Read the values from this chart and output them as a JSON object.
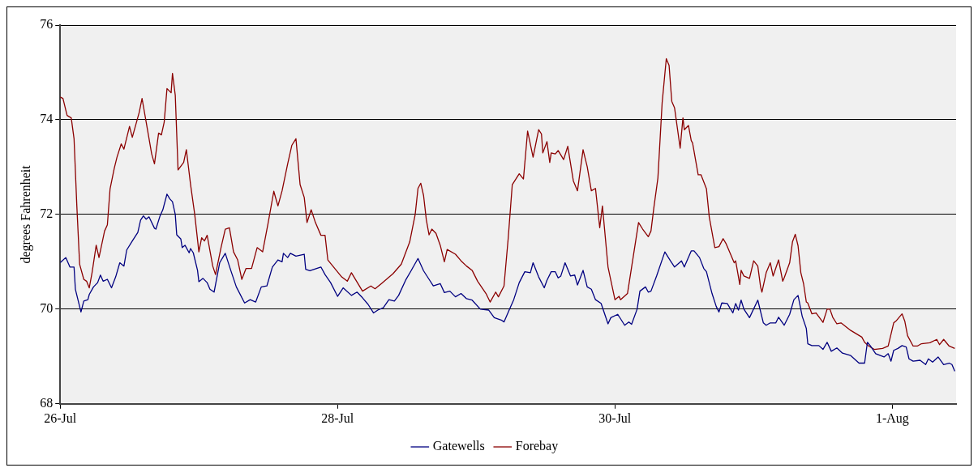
{
  "chart_data": {
    "type": "line",
    "ylabel": "degrees Fahrenheit",
    "xlim": [
      "--07-26T00:00",
      "--08-01T11:02"
    ],
    "xticks": [
      {
        "value": "--07-26",
        "label": "26-Jul"
      },
      {
        "value": "--07-28",
        "label": "28-Jul"
      },
      {
        "value": "--07-30",
        "label": "30-Jul"
      },
      {
        "value": "--08-01",
        "label": "1-Aug"
      }
    ],
    "ylim": [
      68,
      76
    ],
    "yticks": [
      68,
      70,
      72,
      74,
      76
    ],
    "grid": "y",
    "legend": "bottom",
    "marker": "none",
    "line_style": "solid",
    "series": [
      {
        "name": "Gatewells",
        "color": "#000080",
        "x": [
          "--07-26T00:00",
          "--07-26T00:58",
          "--07-26T01:41",
          "--07-26T02:24",
          "--07-26T02:38",
          "--07-26T03:36",
          "--07-26T04:05",
          "--07-26T04:48",
          "--07-26T05:02",
          "--07-26T05:46",
          "--07-26T06:29",
          "--07-26T06:58",
          "--07-26T07:26",
          "--07-26T08:10",
          "--07-26T08:53",
          "--07-26T09:36",
          "--07-26T10:19",
          "--07-26T11:02",
          "--07-26T11:31",
          "--07-26T12:29",
          "--07-26T13:26",
          "--07-26T13:55",
          "--07-26T14:24",
          "--07-26T14:53",
          "--07-26T15:22",
          "--07-26T16:19",
          "--07-26T16:34",
          "--07-26T17:17",
          "--07-26T17:46",
          "--07-26T18:29",
          "--07-26T18:58",
          "--07-26T19:26",
          "--07-26T19:55",
          "--07-26T20:10",
          "--07-26T20:53",
          "--07-26T21:07",
          "--07-26T21:36",
          "--07-26T22:19",
          "--07-26T22:34",
          "--07-26T23:02",
          "--07-26T23:46",
          "--07-27T00:00",
          "--07-27T00:43",
          "--07-27T01:26",
          "--07-27T01:55",
          "--07-27T02:38",
          "--07-27T03:36",
          "--07-27T04:34",
          "--07-27T05:31",
          "--07-27T06:29",
          "--07-27T07:55",
          "--07-27T08:53",
          "--07-27T09:50",
          "--07-27T10:48",
          "--07-27T11:46",
          "--07-27T12:43",
          "--07-27T13:41",
          "--07-27T14:24",
          "--07-27T14:38",
          "--07-27T15:22",
          "--07-27T15:50",
          "--07-27T16:48",
          "--07-27T18:14",
          "--07-27T18:29",
          "--07-27T19:12",
          "--07-27T21:07",
          "--07-27T21:50",
          "--07-27T22:48",
          "--07-28T00:00",
          "--07-28T00:58",
          "--07-28T02:24",
          "--07-28T03:22",
          "--07-28T04:19",
          "--07-28T05:17",
          "--07-28T06:14",
          "--07-28T06:58",
          "--07-28T07:55",
          "--07-28T08:53",
          "--07-28T09:50",
          "--07-28T10:34",
          "--07-28T11:46",
          "--07-28T12:43",
          "--07-28T13:55",
          "--07-28T14:53",
          "--07-28T15:50",
          "--07-28T16:34",
          "--07-28T17:46",
          "--07-28T18:29",
          "--07-28T19:26",
          "--07-28T20:24",
          "--07-28T21:22",
          "--07-28T22:19",
          "--07-28T23:17",
          "--07-29T00:43",
          "--07-29T02:10",
          "--07-29T03:07",
          "--07-29T04:19",
          "--07-29T04:48",
          "--07-29T05:46",
          "--07-29T06:29",
          "--07-29T07:26",
          "--07-29T08:24",
          "--07-29T09:22",
          "--07-29T09:50",
          "--07-29T10:48",
          "--07-29T11:46",
          "--07-29T12:14",
          "--07-29T12:58",
          "--07-29T13:41",
          "--07-29T14:10",
          "--07-29T14:38",
          "--07-29T15:22",
          "--07-29T16:19",
          "--07-29T17:02",
          "--07-29T17:31",
          "--07-29T18:29",
          "--07-29T19:12",
          "--07-29T19:55",
          "--07-29T20:38",
          "--07-29T21:36",
          "--07-29T22:48",
          "--07-29T23:17",
          "--07-30T00:29",
          "--07-30T01:41",
          "--07-30T02:24",
          "--07-30T02:53",
          "--07-30T03:50",
          "--07-30T04:19",
          "--07-30T05:17",
          "--07-30T05:46",
          "--07-30T06:14",
          "--07-30T07:12",
          "--07-30T08:38",
          "--07-30T09:36",
          "--07-30T10:19",
          "--07-30T11:31",
          "--07-30T12:00",
          "--07-30T13:12",
          "--07-30T13:41",
          "--07-30T14:38",
          "--07-30T15:22",
          "--07-30T15:50",
          "--07-30T16:48",
          "--07-30T17:31",
          "--07-30T18:00",
          "--07-30T18:29",
          "--07-30T19:26",
          "--07-30T20:24",
          "--07-30T20:53",
          "--07-30T21:22",
          "--07-30T21:50",
          "--07-30T22:19",
          "--07-30T23:17",
          "--07-31T00:43",
          "--07-31T01:41",
          "--07-31T02:10",
          "--07-31T02:53",
          "--07-31T03:50",
          "--07-31T04:19",
          "--07-31T05:17",
          "--07-31T06:14",
          "--07-31T06:58",
          "--07-31T07:41",
          "--07-31T08:24",
          "--07-31T09:07",
          "--07-31T09:22",
          "--07-31T10:05",
          "--07-31T11:17",
          "--07-31T12:00",
          "--07-31T12:43",
          "--07-31T13:26",
          "--07-31T14:24",
          "--07-31T15:22",
          "--07-31T16:48",
          "--07-31T18:14",
          "--07-31T19:12",
          "--07-31T19:41",
          "--07-31T20:10",
          "--07-31T21:07",
          "--07-31T22:34",
          "--07-31T23:17",
          "--07-31T23:46",
          "--08-01T00:14",
          "--08-01T00:58",
          "--08-01T01:41",
          "--08-01T02:24",
          "--08-01T02:53",
          "--08-01T03:36",
          "--08-01T04:48",
          "--08-01T05:46",
          "--08-01T06:14",
          "--08-01T06:58",
          "--08-01T07:55",
          "--08-01T08:53",
          "--08-01T09:50",
          "--08-01T10:19",
          "--08-01T10:48"
        ],
        "values": [
          70.98,
          71.09,
          70.89,
          70.89,
          70.42,
          69.94,
          70.17,
          70.2,
          70.31,
          70.47,
          70.56,
          70.72,
          70.59,
          70.63,
          70.45,
          70.68,
          70.98,
          70.91,
          71.25,
          71.44,
          71.62,
          71.88,
          71.97,
          71.9,
          71.95,
          71.71,
          71.69,
          71.97,
          72.1,
          72.43,
          72.33,
          72.27,
          72.0,
          71.57,
          71.48,
          71.3,
          71.35,
          71.19,
          71.28,
          71.19,
          70.82,
          70.58,
          70.65,
          70.56,
          70.42,
          70.36,
          70.98,
          71.18,
          70.82,
          70.47,
          70.13,
          70.2,
          70.15,
          70.47,
          70.49,
          70.89,
          71.04,
          71.0,
          71.18,
          71.09,
          71.18,
          71.12,
          71.16,
          70.84,
          70.81,
          70.89,
          70.73,
          70.56,
          70.27,
          70.45,
          70.29,
          70.36,
          70.24,
          70.1,
          69.92,
          69.98,
          70.03,
          70.2,
          70.17,
          70.29,
          70.61,
          70.81,
          71.07,
          70.81,
          70.63,
          70.49,
          70.54,
          70.35,
          70.38,
          70.26,
          70.33,
          70.22,
          70.19,
          70.0,
          69.98,
          69.82,
          69.77,
          69.73,
          70.0,
          70.2,
          70.56,
          70.79,
          70.77,
          70.98,
          70.68,
          70.45,
          70.61,
          70.79,
          70.79,
          70.66,
          70.7,
          70.98,
          70.7,
          70.72,
          70.51,
          70.82,
          70.47,
          70.42,
          70.2,
          70.12,
          69.69,
          69.82,
          69.89,
          69.66,
          69.73,
          69.68,
          70.0,
          70.38,
          70.47,
          70.36,
          70.38,
          70.7,
          71.21,
          71.02,
          70.89,
          71.02,
          70.89,
          71.23,
          71.23,
          71.09,
          70.86,
          70.79,
          70.33,
          70.06,
          69.94,
          70.13,
          70.12,
          69.92,
          70.12,
          69.98,
          70.19,
          70.0,
          69.82,
          70.19,
          69.71,
          69.66,
          69.71,
          69.71,
          69.83,
          69.66,
          69.89,
          70.2,
          70.29,
          69.85,
          69.59,
          69.27,
          69.23,
          69.23,
          69.15,
          69.3,
          69.11,
          69.18,
          69.07,
          69.02,
          68.86,
          68.86,
          69.3,
          69.23,
          69.06,
          68.99,
          69.06,
          68.9,
          69.13,
          69.17,
          69.23,
          69.2,
          68.95,
          68.9,
          68.92,
          68.83,
          68.95,
          68.88,
          68.99,
          68.83,
          68.86,
          68.83,
          68.69
        ]
      },
      {
        "name": "Forebay",
        "color": "#8b0000",
        "x": [
          "--07-26T00:00",
          "--07-26T00:29",
          "--07-26T01:12",
          "--07-26T01:55",
          "--07-26T02:24",
          "--07-26T02:53",
          "--07-26T03:22",
          "--07-26T04:05",
          "--07-26T04:34",
          "--07-26T05:02",
          "--07-26T05:31",
          "--07-26T06:14",
          "--07-26T06:43",
          "--07-26T07:41",
          "--07-26T08:10",
          "--07-26T08:38",
          "--07-26T09:22",
          "--07-26T09:50",
          "--07-26T10:34",
          "--07-26T11:02",
          "--07-26T12:00",
          "--07-26T12:29",
          "--07-26T13:41",
          "--07-26T14:10",
          "--07-26T14:53",
          "--07-26T15:50",
          "--07-26T16:19",
          "--07-26T17:02",
          "--07-26T17:31",
          "--07-26T18:00",
          "--07-26T18:29",
          "--07-26T19:12",
          "--07-26T19:26",
          "--07-26T19:55",
          "--07-26T20:24",
          "--07-26T21:22",
          "--07-26T21:50",
          "--07-26T22:34",
          "--07-26T23:17",
          "--07-27T00:00",
          "--07-27T00:29",
          "--07-27T00:58",
          "--07-27T01:26",
          "--07-27T02:24",
          "--07-27T02:53",
          "--07-27T03:50",
          "--07-27T04:34",
          "--07-27T05:17",
          "--07-27T06:00",
          "--07-27T06:43",
          "--07-27T07:26",
          "--07-27T08:10",
          "--07-27T09:07",
          "--07-27T10:05",
          "--07-27T11:02",
          "--07-27T12:00",
          "--07-27T12:58",
          "--07-27T13:41",
          "--07-27T14:24",
          "--07-27T15:22",
          "--07-27T16:05",
          "--07-27T16:48",
          "--07-27T17:31",
          "--07-27T18:14",
          "--07-27T18:43",
          "--07-27T19:26",
          "--07-27T20:10",
          "--07-27T21:07",
          "--07-27T21:50",
          "--07-27T22:19",
          "--07-27T23:31",
          "--07-28T00:43",
          "--07-28T01:41",
          "--07-28T02:24",
          "--07-28T04:19",
          "--07-28T05:46",
          "--07-28T06:29",
          "--07-28T07:41",
          "--07-28T09:36",
          "--07-28T11:02",
          "--07-28T12:29",
          "--07-28T13:26",
          "--07-28T13:55",
          "--07-28T14:24",
          "--07-28T14:53",
          "--07-28T15:22",
          "--07-28T15:50",
          "--07-28T16:19",
          "--07-28T17:02",
          "--07-28T17:46",
          "--07-28T18:29",
          "--07-28T18:58",
          "--07-28T20:24",
          "--07-28T21:22",
          "--07-28T22:19",
          "--07-28T23:17",
          "--07-29T00:14",
          "--07-29T01:41",
          "--07-29T02:24",
          "--07-29T03:22",
          "--07-29T03:50",
          "--07-29T04:48",
          "--07-29T05:31",
          "--07-29T06:14",
          "--07-29T07:26",
          "--07-29T08:10",
          "--07-29T08:53",
          "--07-29T09:50",
          "--07-29T10:48",
          "--07-29T11:17",
          "--07-29T11:31",
          "--07-29T12:14",
          "--07-29T12:43",
          "--07-29T12:58",
          "--07-29T13:41",
          "--07-29T14:10",
          "--07-29T15:07",
          "--07-29T15:50",
          "--07-29T16:48",
          "--07-29T17:31",
          "--07-29T18:29",
          "--07-29T19:12",
          "--07-29T19:55",
          "--07-29T20:38",
          "--07-29T21:22",
          "--07-29T21:50",
          "--07-29T22:48",
          "--07-30T00:00",
          "--07-30T00:43",
          "--07-30T00:58",
          "--07-30T02:10",
          "--07-30T02:53",
          "--07-30T04:05",
          "--07-30T04:48",
          "--07-30T05:46",
          "--07-30T06:14",
          "--07-30T06:43",
          "--07-30T07:26",
          "--07-30T08:10",
          "--07-30T08:53",
          "--07-30T09:22",
          "--07-30T09:50",
          "--07-30T10:19",
          "--07-30T11:17",
          "--07-30T11:46",
          "--07-30T12:00",
          "--07-30T12:43",
          "--07-30T13:12",
          "--07-30T13:26",
          "--07-30T14:24",
          "--07-30T14:53",
          "--07-30T15:50",
          "--07-30T16:19",
          "--07-30T17:17",
          "--07-30T18:00",
          "--07-30T18:43",
          "--07-30T19:12",
          "--07-30T20:38",
          "--07-30T20:53",
          "--07-30T21:36",
          "--07-30T21:50",
          "--07-30T22:19",
          "--07-30T23:17",
          "--07-31T00:00",
          "--07-31T00:43",
          "--07-31T01:12",
          "--07-31T01:26",
          "--07-31T02:10",
          "--07-31T02:53",
          "--07-31T03:22",
          "--07-31T04:19",
          "--07-31T05:02",
          "--07-31T05:17",
          "--07-31T06:14",
          "--07-31T06:43",
          "--07-31T07:12",
          "--07-31T07:41",
          "--07-31T08:10",
          "--07-31T08:38",
          "--07-31T09:07",
          "--07-31T09:22",
          "--07-31T10:05",
          "--07-31T10:48",
          "--07-31T12:00",
          "--07-31T12:43",
          "--07-31T13:12",
          "--07-31T13:41",
          "--07-31T14:24",
          "--07-31T15:07",
          "--07-31T16:48",
          "--07-31T18:43",
          "--07-31T19:12",
          "--07-31T19:55",
          "--07-31T20:53",
          "--07-31T22:19",
          "--07-31T23:17",
          "--08-01T00:14",
          "--08-01T00:43",
          "--08-01T01:41",
          "--08-01T02:10",
          "--08-01T02:38",
          "--08-01T03:36",
          "--08-01T04:19",
          "--08-01T05:02",
          "--08-01T06:29",
          "--08-01T07:41",
          "--08-01T08:10",
          "--08-01T08:53",
          "--08-01T09:50",
          "--08-01T10:48"
        ],
        "values": [
          74.48,
          74.45,
          74.09,
          74.04,
          73.6,
          72.18,
          70.95,
          70.63,
          70.59,
          70.45,
          70.77,
          71.35,
          71.09,
          71.65,
          71.78,
          72.54,
          72.98,
          73.21,
          73.49,
          73.38,
          73.86,
          73.63,
          74.16,
          74.45,
          73.95,
          73.28,
          73.07,
          73.72,
          73.68,
          73.95,
          74.66,
          74.57,
          74.98,
          74.52,
          72.94,
          73.1,
          73.37,
          72.63,
          72.0,
          71.21,
          71.51,
          71.44,
          71.56,
          70.91,
          70.73,
          71.3,
          71.69,
          71.72,
          71.21,
          71.04,
          70.63,
          70.86,
          70.86,
          71.3,
          71.21,
          71.83,
          72.49,
          72.18,
          72.5,
          73.07,
          73.46,
          73.6,
          72.63,
          72.36,
          71.83,
          72.1,
          71.83,
          71.56,
          71.56,
          71.04,
          70.86,
          70.68,
          70.59,
          70.77,
          70.38,
          70.49,
          70.43,
          70.55,
          70.75,
          70.95,
          71.42,
          72.0,
          72.55,
          72.66,
          72.4,
          71.88,
          71.57,
          71.69,
          71.6,
          71.35,
          71.0,
          71.26,
          71.16,
          71.02,
          70.91,
          70.82,
          70.59,
          70.33,
          70.15,
          70.36,
          70.26,
          70.49,
          71.48,
          72.63,
          72.86,
          72.75,
          73.76,
          73.21,
          73.79,
          73.7,
          73.3,
          73.54,
          73.1,
          73.3,
          73.28,
          73.35,
          73.16,
          73.44,
          72.71,
          72.5,
          73.37,
          73.01,
          72.5,
          72.55,
          71.72,
          72.18,
          70.89,
          70.2,
          70.27,
          70.2,
          70.33,
          70.89,
          71.83,
          71.69,
          71.53,
          71.65,
          72.13,
          72.77,
          74.36,
          75.29,
          75.15,
          74.39,
          74.25,
          73.4,
          74.04,
          73.79,
          73.88,
          73.56,
          73.51,
          72.84,
          72.84,
          72.54,
          71.95,
          71.3,
          71.32,
          71.49,
          71.39,
          70.98,
          71.02,
          70.52,
          70.82,
          70.7,
          70.65,
          71.02,
          70.91,
          70.47,
          70.36,
          70.77,
          70.98,
          70.7,
          71.04,
          70.59,
          70.66,
          70.98,
          71.42,
          71.58,
          71.34,
          70.77,
          70.54,
          70.15,
          70.13,
          69.9,
          69.92,
          69.72,
          70.0,
          70.0,
          69.83,
          69.69,
          69.71,
          69.55,
          69.41,
          69.3,
          69.22,
          69.15,
          69.17,
          69.22,
          69.71,
          69.76,
          69.9,
          69.74,
          69.44,
          69.22,
          69.22,
          69.27,
          69.29,
          69.36,
          69.25,
          69.36,
          69.22,
          69.17
        ]
      }
    ]
  }
}
